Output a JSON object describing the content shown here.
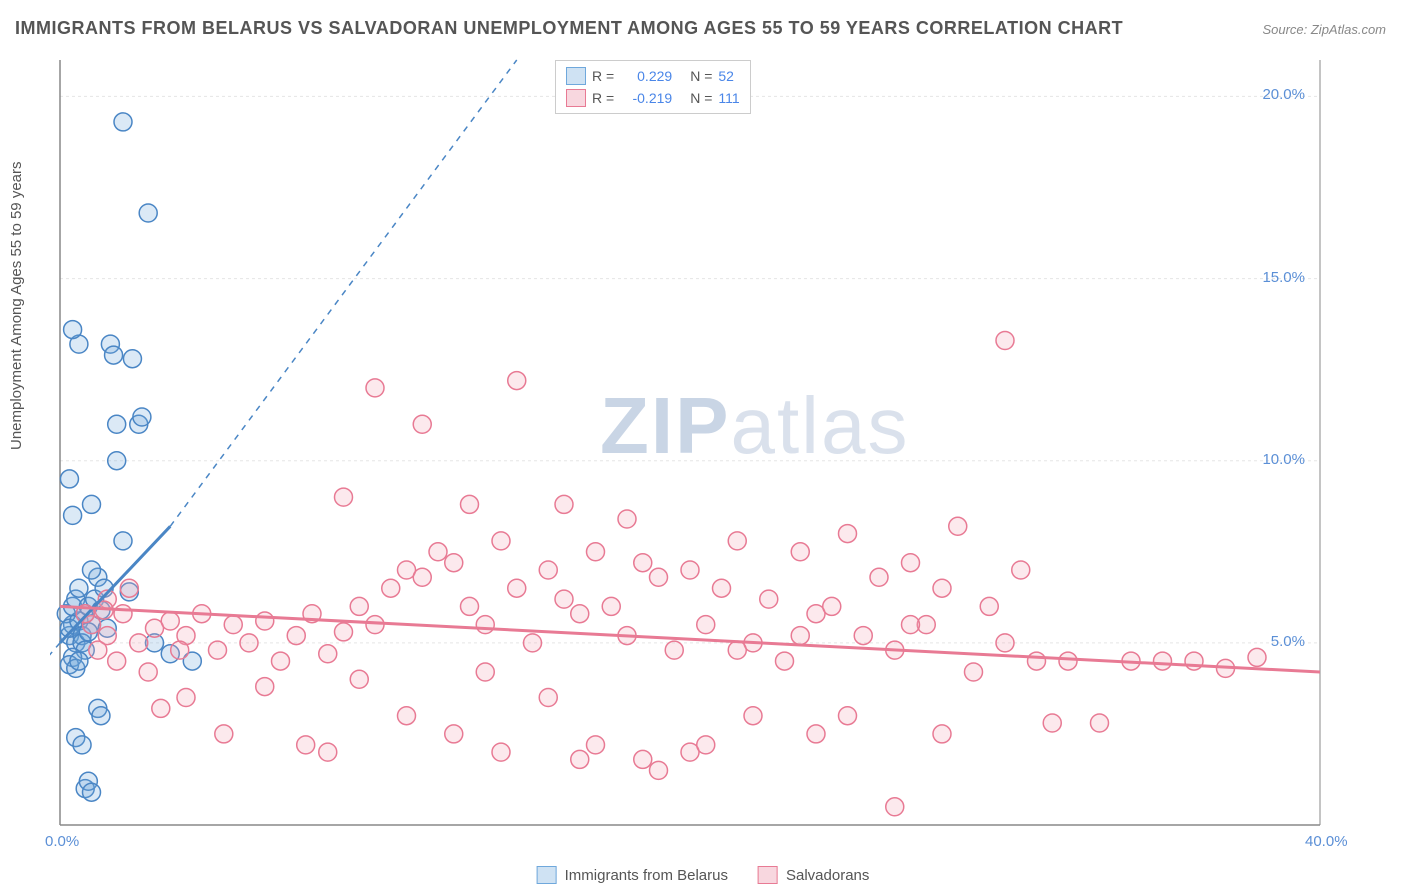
{
  "title": "IMMIGRANTS FROM BELARUS VS SALVADORAN UNEMPLOYMENT AMONG AGES 55 TO 59 YEARS CORRELATION CHART",
  "source": "Source: ZipAtlas.com",
  "y_axis_label": "Unemployment Among Ages 55 to 59 years",
  "watermark_a": "ZIP",
  "watermark_b": "atlas",
  "chart": {
    "type": "scatter",
    "background_color": "#ffffff",
    "grid_color": "#e5e5e5",
    "axis_color": "#888888",
    "xlim": [
      0,
      40
    ],
    "ylim": [
      0,
      21
    ],
    "x_ticks": [
      {
        "v": 0,
        "label": "0.0%"
      },
      {
        "v": 40,
        "label": "40.0%"
      }
    ],
    "y_ticks": [
      {
        "v": 5,
        "label": "5.0%"
      },
      {
        "v": 10,
        "label": "10.0%"
      },
      {
        "v": 15,
        "label": "15.0%"
      },
      {
        "v": 20,
        "label": "20.0%"
      }
    ],
    "marker_radius": 9,
    "marker_stroke_width": 1.5,
    "marker_fill_opacity": 0.25,
    "series": [
      {
        "name": "Immigrants from Belarus",
        "color": "#6fa8dc",
        "stroke": "#4a86c5",
        "R": "0.229",
        "N": "52",
        "trend": {
          "x1": 0,
          "y1": 5.0,
          "x2": 3.5,
          "y2": 8.2,
          "dash_to_x": 14.5,
          "dash_to_y": 21,
          "solid_width": 3
        },
        "points": [
          [
            0.3,
            5.2
          ],
          [
            0.4,
            5.5
          ],
          [
            0.2,
            5.8
          ],
          [
            0.5,
            5.0
          ],
          [
            0.3,
            5.4
          ],
          [
            0.6,
            5.6
          ],
          [
            0.4,
            6.0
          ],
          [
            0.7,
            5.2
          ],
          [
            0.5,
            6.2
          ],
          [
            0.8,
            5.8
          ],
          [
            0.6,
            6.5
          ],
          [
            0.9,
            6.0
          ],
          [
            0.7,
            5.0
          ],
          [
            1.0,
            5.5
          ],
          [
            0.8,
            4.8
          ],
          [
            1.1,
            6.2
          ],
          [
            1.2,
            6.8
          ],
          [
            0.9,
            5.3
          ],
          [
            1.3,
            5.9
          ],
          [
            1.0,
            7.0
          ],
          [
            1.4,
            6.5
          ],
          [
            1.5,
            5.4
          ],
          [
            0.4,
            4.6
          ],
          [
            0.3,
            4.4
          ],
          [
            0.5,
            4.3
          ],
          [
            0.6,
            4.5
          ],
          [
            2.0,
            7.8
          ],
          [
            2.2,
            6.4
          ],
          [
            1.8,
            10.0
          ],
          [
            2.5,
            11.0
          ],
          [
            2.6,
            11.2
          ],
          [
            1.6,
            13.2
          ],
          [
            1.7,
            12.9
          ],
          [
            2.3,
            12.8
          ],
          [
            0.6,
            13.2
          ],
          [
            0.4,
            13.6
          ],
          [
            1.0,
            8.8
          ],
          [
            1.8,
            11.0
          ],
          [
            2.8,
            16.8
          ],
          [
            2.0,
            19.3
          ],
          [
            0.8,
            1.0
          ],
          [
            0.9,
            1.2
          ],
          [
            1.0,
            0.9
          ],
          [
            0.5,
            2.4
          ],
          [
            0.7,
            2.2
          ],
          [
            1.2,
            3.2
          ],
          [
            1.3,
            3.0
          ],
          [
            3.5,
            4.7
          ],
          [
            3.0,
            5.0
          ],
          [
            4.2,
            4.5
          ],
          [
            0.3,
            9.5
          ],
          [
            0.4,
            8.5
          ]
        ]
      },
      {
        "name": "Salvadorans",
        "color": "#f4a6b7",
        "stroke": "#e87a94",
        "R": "-0.219",
        "N": "111",
        "trend": {
          "x1": 0,
          "y1": 6.0,
          "x2": 40,
          "y2": 4.2,
          "solid_width": 3
        },
        "points": [
          [
            1.0,
            5.5
          ],
          [
            1.5,
            5.2
          ],
          [
            2.0,
            5.8
          ],
          [
            2.5,
            5.0
          ],
          [
            3.0,
            5.4
          ],
          [
            3.5,
            5.6
          ],
          [
            4.0,
            5.2
          ],
          [
            4.5,
            5.8
          ],
          [
            5.0,
            4.8
          ],
          [
            5.5,
            5.5
          ],
          [
            6.0,
            5.0
          ],
          [
            6.5,
            5.6
          ],
          [
            7.0,
            4.5
          ],
          [
            7.5,
            5.2
          ],
          [
            8.0,
            5.8
          ],
          [
            8.5,
            4.7
          ],
          [
            9.0,
            5.3
          ],
          [
            9.5,
            6.0
          ],
          [
            10.0,
            5.5
          ],
          [
            10.5,
            6.5
          ],
          [
            11.0,
            7.0
          ],
          [
            11.5,
            6.8
          ],
          [
            12.0,
            7.5
          ],
          [
            12.5,
            7.2
          ],
          [
            13.0,
            6.0
          ],
          [
            13.5,
            5.5
          ],
          [
            14.0,
            7.8
          ],
          [
            14.5,
            6.5
          ],
          [
            15.0,
            5.0
          ],
          [
            15.5,
            7.0
          ],
          [
            16.0,
            6.2
          ],
          [
            16.5,
            5.8
          ],
          [
            17.0,
            7.5
          ],
          [
            17.5,
            6.0
          ],
          [
            18.0,
            5.2
          ],
          [
            18.5,
            7.2
          ],
          [
            19.0,
            6.8
          ],
          [
            19.5,
            4.8
          ],
          [
            20.0,
            7.0
          ],
          [
            20.5,
            5.5
          ],
          [
            21.0,
            6.5
          ],
          [
            21.5,
            7.8
          ],
          [
            22.0,
            5.0
          ],
          [
            22.5,
            6.2
          ],
          [
            23.0,
            4.5
          ],
          [
            23.5,
            7.5
          ],
          [
            24.0,
            5.8
          ],
          [
            24.5,
            6.0
          ],
          [
            25.0,
            8.0
          ],
          [
            25.5,
            5.2
          ],
          [
            26.0,
            6.8
          ],
          [
            26.5,
            4.8
          ],
          [
            27.0,
            7.2
          ],
          [
            27.5,
            5.5
          ],
          [
            28.0,
            6.5
          ],
          [
            28.5,
            8.2
          ],
          [
            29.0,
            4.2
          ],
          [
            29.5,
            6.0
          ],
          [
            30.0,
            5.0
          ],
          [
            30.5,
            7.0
          ],
          [
            31.0,
            4.5
          ],
          [
            31.5,
            2.8
          ],
          [
            32.0,
            4.5
          ],
          [
            33.0,
            2.8
          ],
          [
            34.0,
            4.5
          ],
          [
            35.0,
            4.5
          ],
          [
            36.0,
            4.5
          ],
          [
            37.0,
            4.3
          ],
          [
            38.0,
            4.6
          ],
          [
            10.0,
            12.0
          ],
          [
            14.5,
            12.2
          ],
          [
            11.5,
            11.0
          ],
          [
            9.0,
            9.0
          ],
          [
            13.0,
            8.8
          ],
          [
            16.0,
            8.8
          ],
          [
            18.0,
            8.4
          ],
          [
            1.5,
            6.2
          ],
          [
            2.2,
            6.5
          ],
          [
            3.2,
            3.2
          ],
          [
            4.0,
            3.5
          ],
          [
            5.2,
            2.5
          ],
          [
            6.5,
            3.8
          ],
          [
            7.8,
            2.2
          ],
          [
            8.5,
            2.0
          ],
          [
            9.5,
            4.0
          ],
          [
            11.0,
            3.0
          ],
          [
            12.5,
            2.5
          ],
          [
            14.0,
            2.0
          ],
          [
            15.5,
            3.5
          ],
          [
            17.0,
            2.2
          ],
          [
            18.5,
            1.8
          ],
          [
            20.0,
            2.0
          ],
          [
            22.0,
            3.0
          ],
          [
            24.0,
            2.5
          ],
          [
            26.5,
            0.5
          ],
          [
            30.0,
            13.3
          ],
          [
            20.5,
            2.2
          ],
          [
            21.5,
            4.8
          ],
          [
            23.5,
            5.2
          ],
          [
            25.0,
            3.0
          ],
          [
            27.0,
            5.5
          ],
          [
            28.0,
            2.5
          ],
          [
            19.0,
            1.5
          ],
          [
            16.5,
            1.8
          ],
          [
            13.5,
            4.2
          ],
          [
            1.2,
            4.8
          ],
          [
            1.8,
            4.5
          ],
          [
            2.8,
            4.2
          ],
          [
            3.8,
            4.8
          ],
          [
            0.8,
            5.8
          ],
          [
            1.4,
            5.9
          ]
        ]
      }
    ]
  },
  "stats_legend": {
    "r_label": "R =",
    "n_label": "N =",
    "value_color": "#4a86e8"
  },
  "bottom_legend": [
    {
      "label": "Immigrants from Belarus",
      "fill": "#cfe2f3",
      "stroke": "#6fa8dc"
    },
    {
      "label": "Salvadorans",
      "fill": "#f8d7df",
      "stroke": "#e87a94"
    }
  ]
}
